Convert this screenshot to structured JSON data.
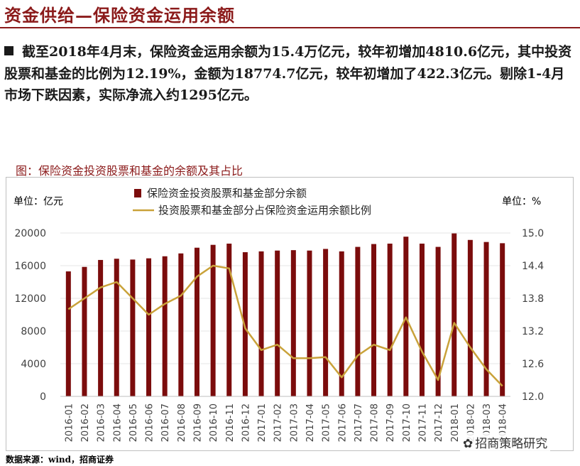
{
  "header": {
    "title": "资金供给—保险资金运用余额"
  },
  "paragraph": "截至2018年4月末，保险资金运用余额为15.4万亿元，较年初增加4810.6亿元，其中投资股票和基金的比例为12.19%，金额为18774.7亿元，较年初增加了422.3亿元。剔除1-4月市场下跌因素，实际净流入约1295亿元。",
  "figure_title": "图：保险资金投资股票和基金的余额及其占比",
  "source": "数据来源：wind，招商证券",
  "watermark": "招商策略研究",
  "colors": {
    "bar": "#7b0c0c",
    "line": "#c9a23a",
    "title": "#8b1a1a"
  },
  "chart_data": {
    "type": "bar+line",
    "left_unit": "单位：亿元",
    "right_unit": "单位：%",
    "legend": [
      "保险资金投资股票和基金部分余额",
      "投资股票和基金部分占保险资金运用余额比例"
    ],
    "left_axis": {
      "min": 0,
      "max": 20000,
      "ticks": [
        "0",
        "4000",
        "8000",
        "12000",
        "16000",
        "20000"
      ]
    },
    "right_axis": {
      "min": 12.0,
      "max": 15.0,
      "ticks": [
        "12.0",
        "12.6",
        "13.2",
        "13.8",
        "14.4",
        "15.0"
      ]
    },
    "categories": [
      "2016-01",
      "2016-02",
      "2016-03",
      "2016-04",
      "2016-05",
      "2016-06",
      "2016-07",
      "2016-08",
      "2016-09",
      "2016-10",
      "2016-11",
      "2016-12",
      "2017-01",
      "2017-02",
      "2017-03",
      "2017-04",
      "2017-05",
      "2017-06",
      "2017-07",
      "2017-08",
      "2017-09",
      "2017-10",
      "2017-11",
      "2017-12",
      "2018-01",
      "2018-02",
      "2018-03",
      "2018-04"
    ],
    "series": [
      {
        "name": "保险资金投资股票和基金部分余额",
        "axis": "left",
        "kind": "bar",
        "values": [
          15300,
          15850,
          16700,
          16850,
          16750,
          16900,
          17150,
          17500,
          18200,
          18550,
          18700,
          17650,
          17750,
          17850,
          17900,
          17850,
          18050,
          17750,
          18300,
          18650,
          18700,
          19550,
          18700,
          18300,
          19950,
          19150,
          18900,
          18750
        ]
      },
      {
        "name": "投资股票和基金部分占保险资金运用余额比例",
        "axis": "right",
        "kind": "line",
        "values": [
          13.6,
          13.8,
          14.0,
          14.1,
          13.8,
          13.5,
          13.7,
          13.85,
          14.2,
          14.4,
          14.35,
          13.25,
          12.85,
          12.95,
          12.7,
          12.7,
          12.72,
          12.35,
          12.75,
          12.95,
          12.85,
          13.45,
          12.82,
          12.3,
          13.35,
          12.9,
          12.5,
          12.19
        ]
      }
    ]
  }
}
